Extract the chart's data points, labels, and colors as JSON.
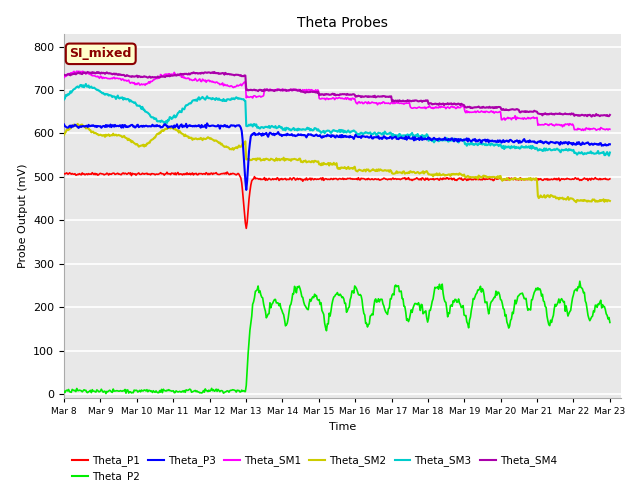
{
  "title": "Theta Probes",
  "xlabel": "Time",
  "ylabel": "Probe Output (mV)",
  "ylim": [
    -10,
    830
  ],
  "xlim": [
    0,
    15.3
  ],
  "annotation_text": "SI_mixed",
  "annotation_bg": "#ffffcc",
  "annotation_border": "#8b0000",
  "annotation_text_color": "#8b0000",
  "bg_color": "#e8e8e8",
  "grid_color": "white",
  "x_tick_labels": [
    "Mar 8",
    "Mar 9",
    "Mar 10",
    "Mar 11",
    "Mar 12",
    "Mar 13",
    "Mar 14",
    "Mar 15",
    "Mar 16",
    "Mar 17",
    "Mar 18",
    "Mar 19",
    "Mar 20",
    "Mar 21",
    "Mar 22",
    "Mar 23"
  ],
  "series": {
    "Theta_P1": {
      "color": "#ff0000",
      "lw": 1.2
    },
    "Theta_P2": {
      "color": "#00ee00",
      "lw": 1.2
    },
    "Theta_P3": {
      "color": "#0000ff",
      "lw": 1.5
    },
    "Theta_SM1": {
      "color": "#ff00ff",
      "lw": 1.2
    },
    "Theta_SM2": {
      "color": "#cccc00",
      "lw": 1.5
    },
    "Theta_SM3": {
      "color": "#00cccc",
      "lw": 1.5
    },
    "Theta_SM4": {
      "color": "#aa00aa",
      "lw": 1.5
    }
  }
}
